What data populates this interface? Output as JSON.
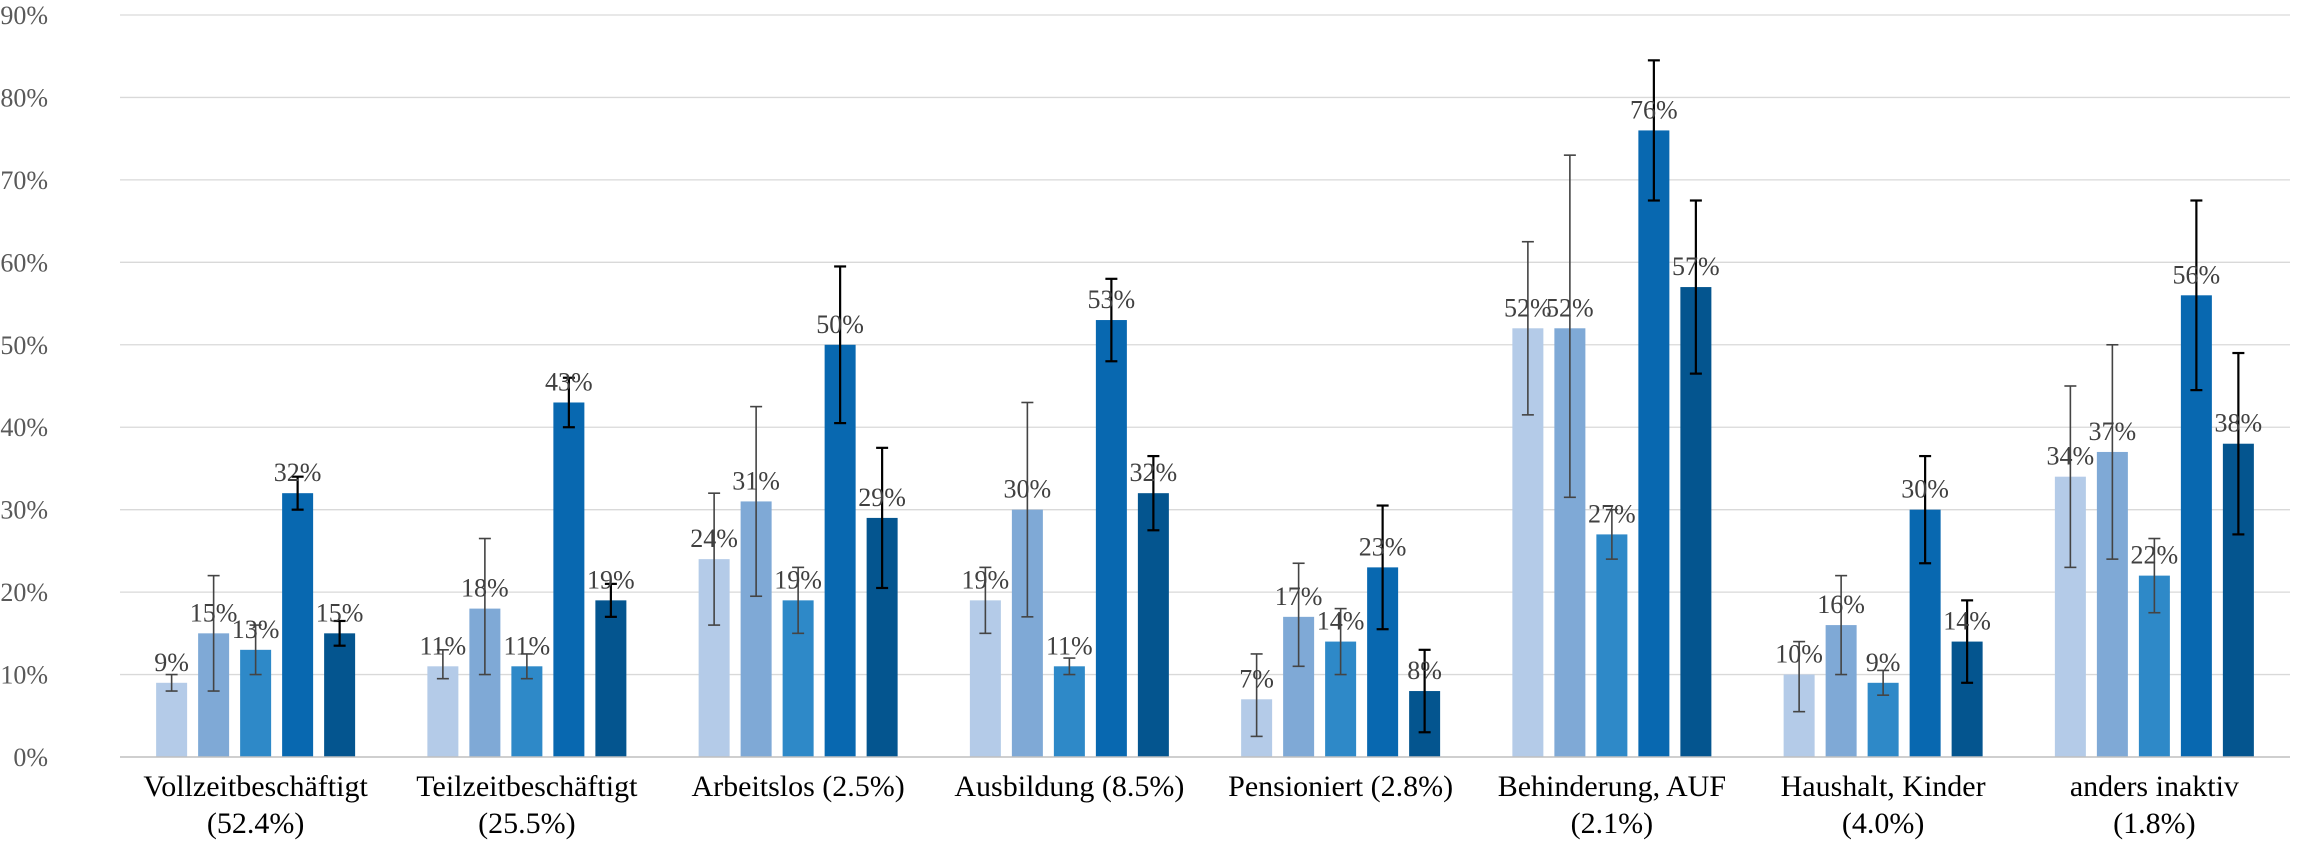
{
  "chart_data": {
    "type": "bar",
    "categories": [
      [
        "Vollzeitbeschäftigt",
        "(52.4%)"
      ],
      [
        "Teilzeitbeschäftigt",
        "(25.5%)"
      ],
      [
        "Arbeitslos (2.5%)"
      ],
      [
        "Ausbildung (8.5%)"
      ],
      [
        "Pensioniert (2.8%)"
      ],
      [
        "Behinderung, AUF",
        "(2.1%)"
      ],
      [
        "Haushalt, Kinder",
        "(4.0%)"
      ],
      [
        "anders inaktiv",
        "(1.8%)"
      ]
    ],
    "series": [
      {
        "color": "#b4cbe8",
        "values": [
          9,
          11,
          24,
          19,
          7,
          52,
          10,
          34
        ],
        "error_low": [
          8,
          9.5,
          16,
          15,
          2.5,
          41.5,
          5.5,
          23
        ],
        "error_high": [
          10,
          13,
          32,
          23,
          12.5,
          62.5,
          14,
          45
        ],
        "labels": [
          "9%",
          "11%",
          "24%",
          "19%",
          "7%",
          "52%",
          "10%",
          "34%"
        ]
      },
      {
        "color": "#7fa9d6",
        "values": [
          15,
          18,
          31,
          30,
          17,
          52,
          16,
          37
        ],
        "error_low": [
          8,
          10,
          19.5,
          17,
          11,
          31.5,
          10,
          24
        ],
        "error_high": [
          22,
          26.5,
          42.5,
          43,
          23.5,
          73,
          22,
          50
        ],
        "labels": [
          "15%",
          "18%",
          "31%",
          "30%",
          "17%",
          "52%",
          "16%",
          "37%"
        ]
      },
      {
        "color": "#2e89c8",
        "values": [
          13,
          11,
          19,
          11,
          14,
          27,
          9,
          22
        ],
        "error_low": [
          10,
          9.5,
          15,
          10,
          10,
          24,
          7.5,
          17.5
        ],
        "error_high": [
          16,
          12.5,
          23,
          12,
          18,
          30,
          10.5,
          26.5
        ],
        "labels": [
          "13%",
          "11%",
          "19%",
          "11%",
          "14%",
          "27%",
          "9%",
          "22%"
        ]
      },
      {
        "color": "#0868b0",
        "values": [
          32,
          43,
          50,
          53,
          23,
          76,
          30,
          56
        ],
        "error_low": [
          30,
          40,
          40.5,
          48,
          15.5,
          67.5,
          23.5,
          44.5
        ],
        "error_high": [
          34,
          46,
          59.5,
          58,
          30.5,
          84.5,
          36.5,
          67.5
        ],
        "labels": [
          "32%",
          "43%",
          "50%",
          "53%",
          "23%",
          "76%",
          "30%",
          "56%"
        ]
      },
      {
        "color": "#04558f",
        "values": [
          15,
          19,
          29,
          32,
          8,
          57,
          14,
          38
        ],
        "error_low": [
          13.5,
          17,
          20.5,
          27.5,
          3,
          46.5,
          9,
          27
        ],
        "error_high": [
          16.5,
          21,
          37.5,
          36.5,
          13,
          67.5,
          19,
          49
        ],
        "labels": [
          "15%",
          "19%",
          "29%",
          "32%",
          "8%",
          "57%",
          "14%",
          "38%"
        ]
      }
    ],
    "ylim": [
      0,
      90
    ],
    "yticks": [
      "0%",
      "10%",
      "20%",
      "30%",
      "40%",
      "50%",
      "60%",
      "70%",
      "80%",
      "90%"
    ],
    "grid": true,
    "legend": "none"
  }
}
